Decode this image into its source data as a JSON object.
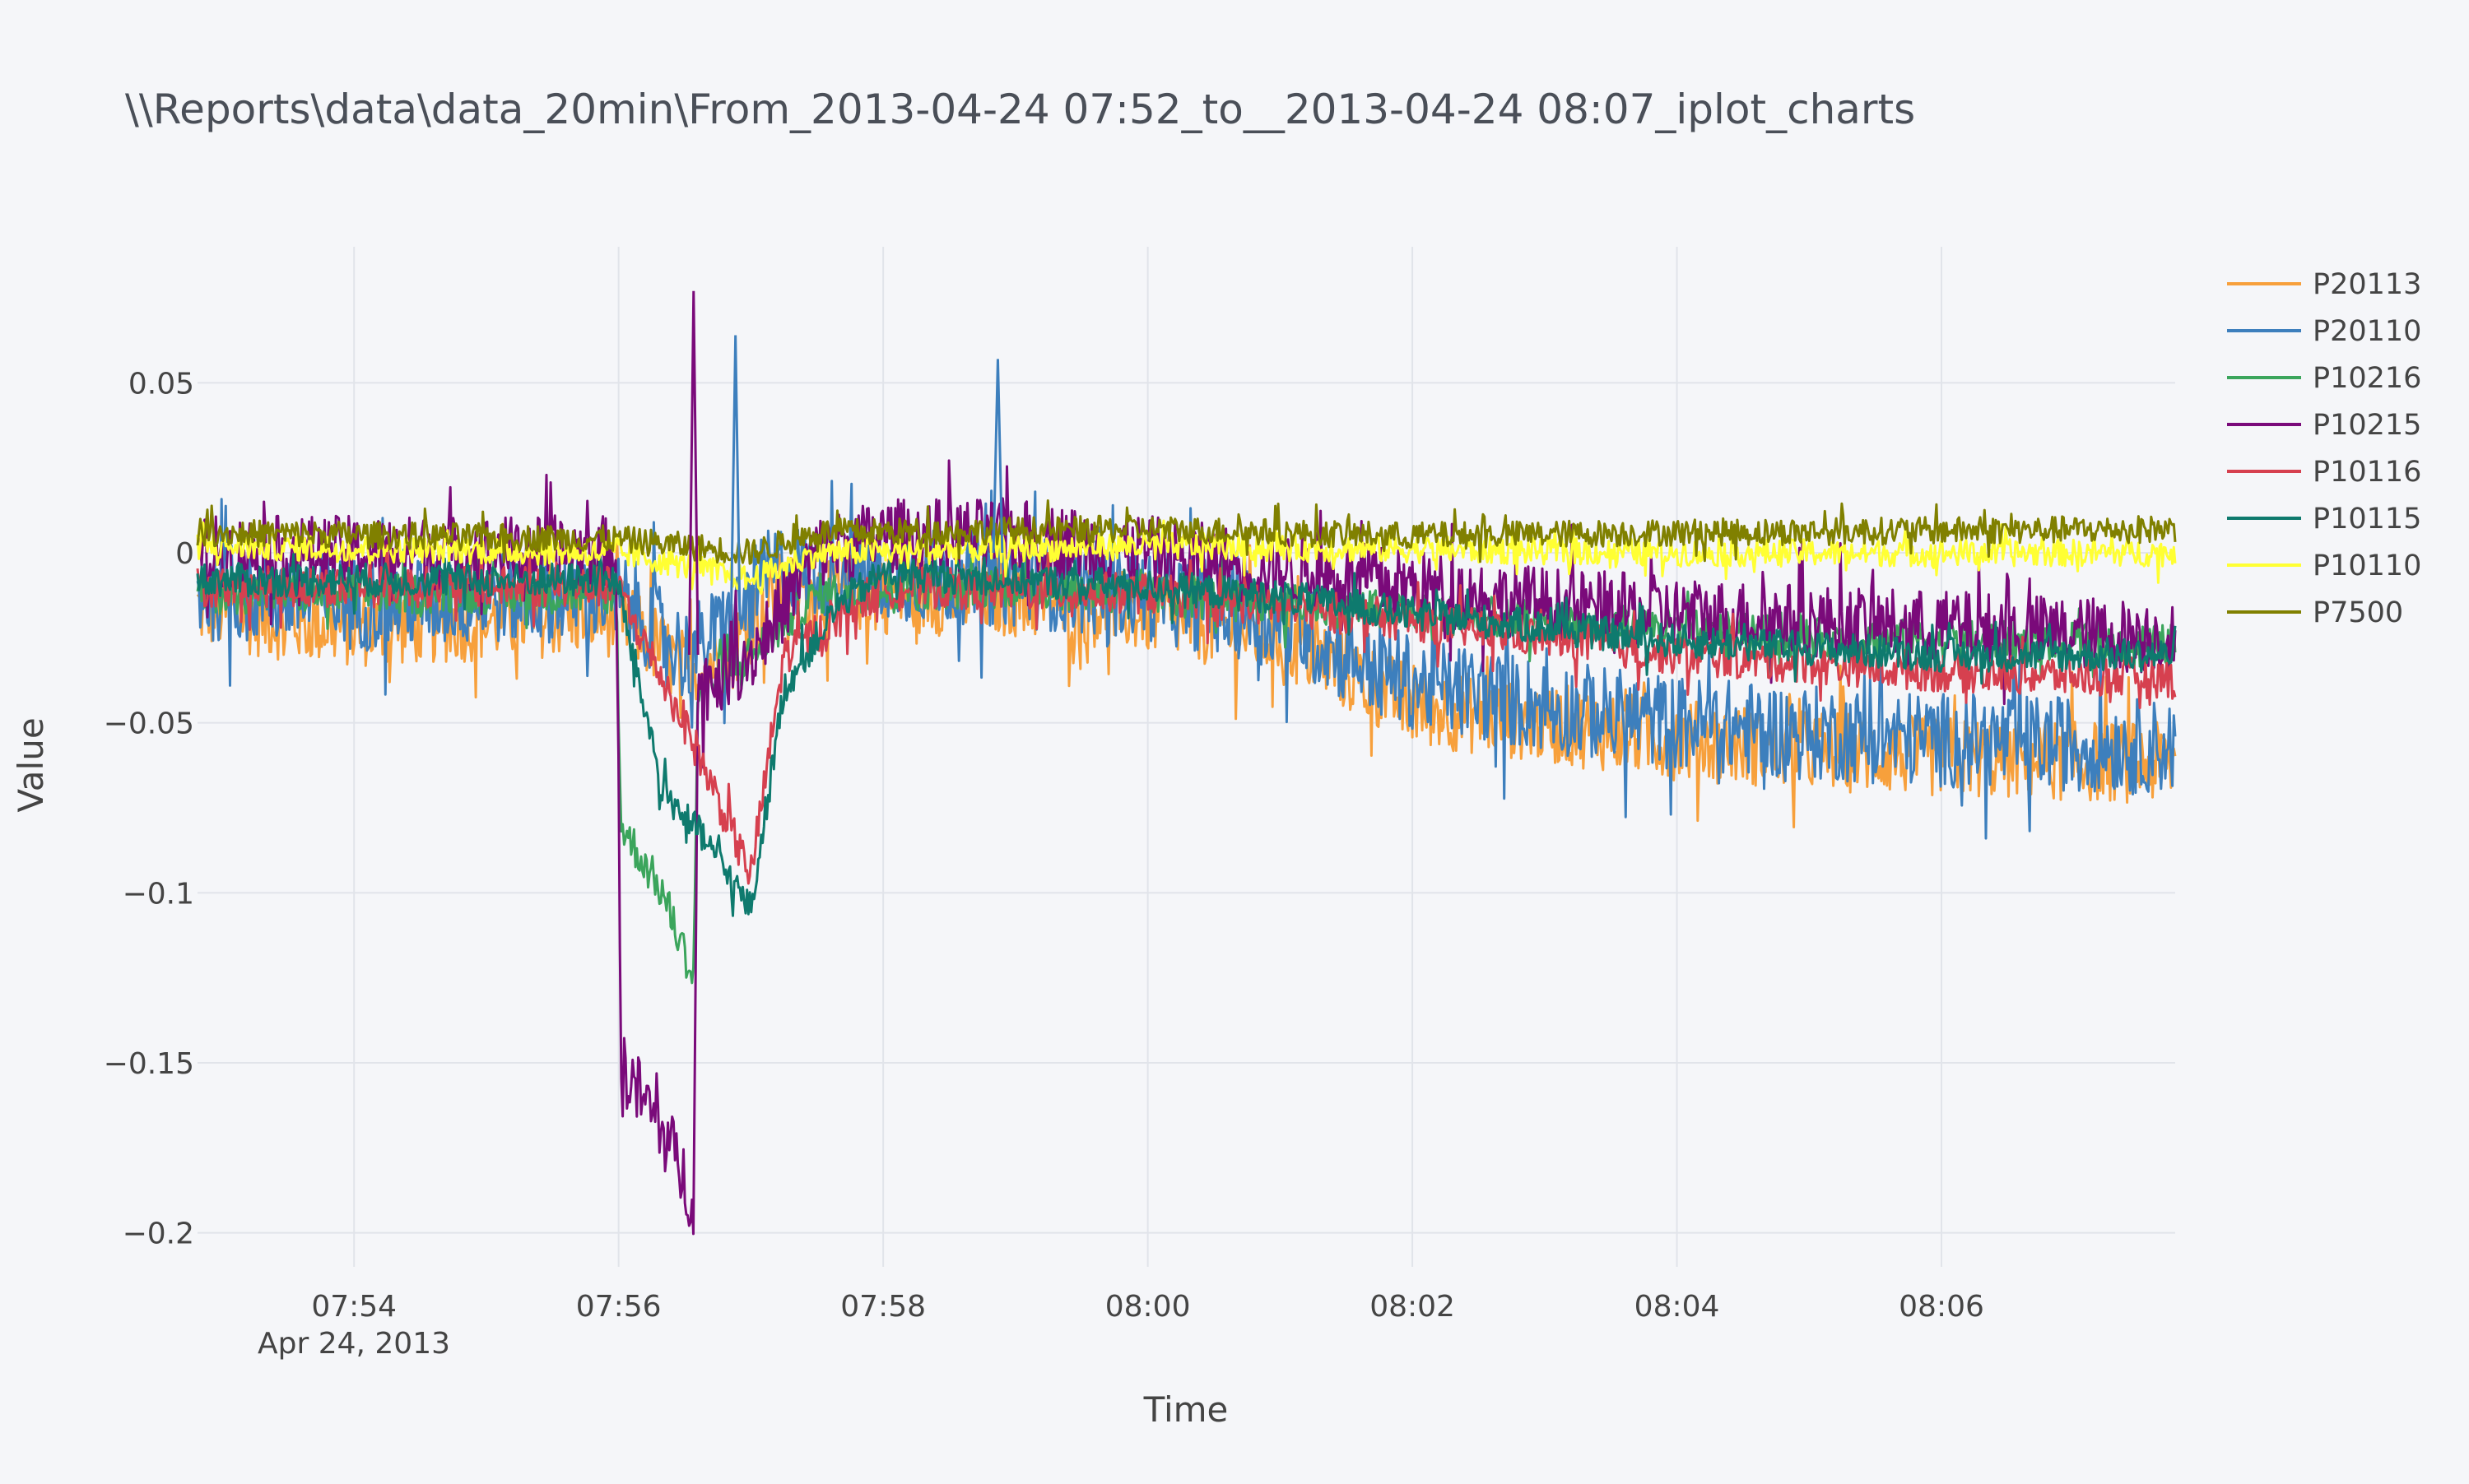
{
  "chart_data": {
    "type": "line",
    "title": "\\\\Reports\\data\\data_20min\\From_2013-04-24 07:52_to__2013-04-24 08:07_iplot_charts",
    "xlabel": "Time",
    "ylabel": "Value",
    "x_range": [
      "2013-04-24 07:52:49",
      "2013-04-24 08:07:46"
    ],
    "xticks": [
      "07:54",
      "07:56",
      "07:58",
      "08:00",
      "08:02",
      "08:04",
      "08:06"
    ],
    "xtick_date": "Apr 24, 2013",
    "ylim": [
      -0.21,
      0.09
    ],
    "yticks": [
      0.05,
      0,
      -0.05,
      -0.1,
      -0.15,
      -0.2
    ],
    "ytick_labels": [
      "0.05",
      "0",
      "−0.05",
      "−0.1",
      "−0.15",
      "−0.2"
    ],
    "grid": true,
    "legend_position": "right",
    "series": [
      {
        "name": "P20113",
        "color": "#f7a03c",
        "profile": [
          [
            "07:52:49",
            -0.016
          ],
          [
            "07:53:30",
            -0.02
          ],
          [
            "07:54:00",
            -0.022
          ],
          [
            "07:55:00",
            -0.02
          ],
          [
            "07:55:50",
            -0.018
          ],
          [
            "07:56:05",
            -0.02
          ],
          [
            "07:56:30",
            -0.035
          ],
          [
            "07:56:50",
            -0.03
          ],
          [
            "07:57:10",
            -0.012
          ],
          [
            "07:58:00",
            -0.012
          ],
          [
            "07:59:00",
            -0.013
          ],
          [
            "08:00:00",
            -0.018
          ],
          [
            "08:01:00",
            -0.025
          ],
          [
            "08:01:30",
            -0.035
          ],
          [
            "08:02:00",
            -0.045
          ],
          [
            "08:03:00",
            -0.05
          ],
          [
            "08:04:00",
            -0.055
          ],
          [
            "08:05:00",
            -0.058
          ],
          [
            "08:06:00",
            -0.06
          ],
          [
            "08:07:46",
            -0.062
          ]
        ],
        "noise": 0.012,
        "min": -0.093,
        "max": 0.022
      },
      {
        "name": "P20110",
        "color": "#3d7fbd",
        "profile": [
          [
            "07:52:49",
            -0.012
          ],
          [
            "07:53:30",
            -0.013
          ],
          [
            "07:54:00",
            -0.015
          ],
          [
            "07:55:00",
            -0.013
          ],
          [
            "07:55:50",
            -0.012
          ],
          [
            "07:56:05",
            -0.015
          ],
          [
            "07:56:30",
            -0.03
          ],
          [
            "07:56:50",
            -0.022
          ],
          [
            "07:57:10",
            -0.005
          ],
          [
            "07:58:00",
            -0.006
          ],
          [
            "07:59:00",
            -0.008
          ],
          [
            "08:00:00",
            -0.012
          ],
          [
            "08:01:00",
            -0.02
          ],
          [
            "08:01:30",
            -0.03
          ],
          [
            "08:02:00",
            -0.038
          ],
          [
            "08:03:00",
            -0.045
          ],
          [
            "08:04:00",
            -0.05
          ],
          [
            "08:05:00",
            -0.053
          ],
          [
            "08:06:00",
            -0.055
          ],
          [
            "08:07:46",
            -0.057
          ]
        ],
        "noise": 0.014,
        "min": -0.094,
        "max": 0.064
      },
      {
        "name": "P10216",
        "color": "#3ba55c",
        "profile": [
          [
            "07:52:49",
            -0.012
          ],
          [
            "07:55:59",
            -0.012
          ],
          [
            "07:56:01",
            -0.08
          ],
          [
            "07:56:20",
            -0.1
          ],
          [
            "07:56:34",
            -0.125
          ],
          [
            "07:56:36",
            -0.04
          ],
          [
            "07:57:00",
            -0.03
          ],
          [
            "07:57:30",
            -0.012
          ],
          [
            "07:59:00",
            -0.01
          ],
          [
            "08:01:00",
            -0.015
          ],
          [
            "08:03:00",
            -0.02
          ],
          [
            "08:05:00",
            -0.025
          ],
          [
            "08:07:46",
            -0.027
          ]
        ],
        "noise": 0.006,
        "min": -0.142,
        "max": 0.01
      },
      {
        "name": "P10215",
        "color": "#7a0a7a",
        "profile": [
          [
            "07:52:49",
            0.0
          ],
          [
            "07:55:59",
            0.0
          ],
          [
            "07:56:01",
            -0.15
          ],
          [
            "07:56:20",
            -0.17
          ],
          [
            "07:56:34",
            -0.19
          ],
          [
            "07:56:36",
            -0.04
          ],
          [
            "07:57:00",
            -0.03
          ],
          [
            "07:57:30",
            0.0
          ],
          [
            "07:58:00",
            0.005
          ],
          [
            "07:59:00",
            0.005
          ],
          [
            "08:00:00",
            0.0
          ],
          [
            "08:01:00",
            -0.005
          ],
          [
            "08:02:00",
            -0.01
          ],
          [
            "08:03:00",
            -0.015
          ],
          [
            "08:04:00",
            -0.018
          ],
          [
            "08:05:00",
            -0.02
          ],
          [
            "08:06:00",
            -0.022
          ],
          [
            "08:07:46",
            -0.025
          ]
        ],
        "noise": 0.011,
        "min": -0.205,
        "max": 0.077
      },
      {
        "name": "P10116",
        "color": "#d6404f",
        "profile": [
          [
            "07:52:49",
            -0.01
          ],
          [
            "07:55:59",
            -0.01
          ],
          [
            "07:56:30",
            -0.05
          ],
          [
            "07:57:00",
            -0.095
          ],
          [
            "07:57:15",
            -0.03
          ],
          [
            "07:58:00",
            -0.01
          ],
          [
            "08:00:00",
            -0.012
          ],
          [
            "08:02:00",
            -0.02
          ],
          [
            "08:04:00",
            -0.03
          ],
          [
            "08:06:00",
            -0.035
          ],
          [
            "08:07:46",
            -0.037
          ]
        ],
        "noise": 0.006,
        "min": -0.121,
        "max": 0.01
      },
      {
        "name": "P10115",
        "color": "#0e7a6e",
        "profile": [
          [
            "07:52:49",
            -0.008
          ],
          [
            "07:55:59",
            -0.008
          ],
          [
            "07:56:20",
            -0.07
          ],
          [
            "07:56:40",
            -0.085
          ],
          [
            "07:57:00",
            -0.105
          ],
          [
            "07:57:15",
            -0.04
          ],
          [
            "07:57:40",
            -0.015
          ],
          [
            "07:58:00",
            -0.006
          ],
          [
            "08:00:00",
            -0.01
          ],
          [
            "08:01:00",
            -0.013
          ],
          [
            "08:02:00",
            -0.018
          ],
          [
            "08:03:00",
            -0.022
          ],
          [
            "08:04:00",
            -0.026
          ],
          [
            "08:05:00",
            -0.028
          ],
          [
            "08:06:00",
            -0.03
          ],
          [
            "08:07:46",
            -0.03
          ]
        ],
        "noise": 0.005,
        "min": -0.118,
        "max": 0.01
      },
      {
        "name": "P10110",
        "color": "#ffff33",
        "profile": [
          [
            "07:52:49",
            0.002
          ],
          [
            "07:56:00",
            0.0
          ],
          [
            "07:56:40",
            -0.005
          ],
          [
            "07:57:00",
            -0.008
          ],
          [
            "07:57:30",
            0.0
          ],
          [
            "08:00:00",
            0.002
          ],
          [
            "08:04:00",
            0.0
          ],
          [
            "08:07:46",
            0.0
          ]
        ],
        "noise": 0.004,
        "min": -0.012,
        "max": 0.012
      },
      {
        "name": "P7500",
        "color": "#808000",
        "profile": [
          [
            "07:52:49",
            0.006
          ],
          [
            "07:56:00",
            0.004
          ],
          [
            "07:56:30",
            0.002
          ],
          [
            "07:57:00",
            0.0
          ],
          [
            "07:57:30",
            0.006
          ],
          [
            "08:00:00",
            0.007
          ],
          [
            "08:02:00",
            0.005
          ],
          [
            "08:04:00",
            0.006
          ],
          [
            "08:07:46",
            0.007
          ]
        ],
        "noise": 0.004,
        "min": -0.005,
        "max": 0.02
      }
    ]
  }
}
